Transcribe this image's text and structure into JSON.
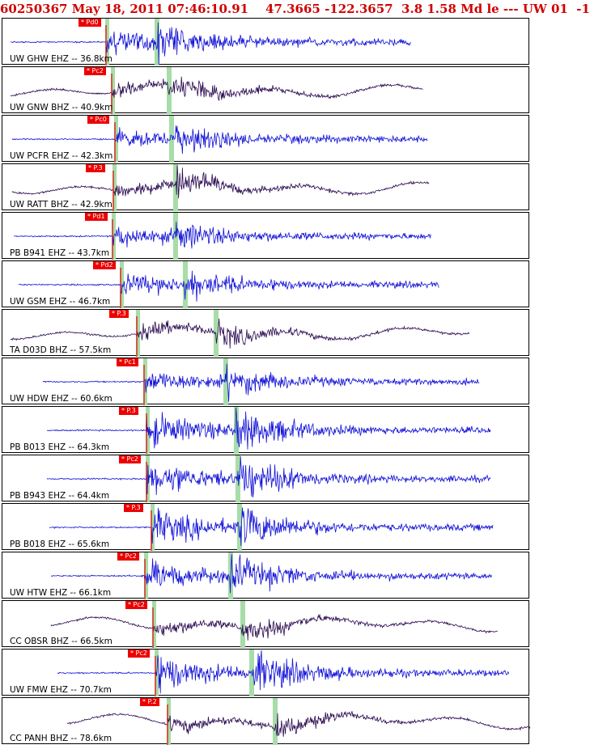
{
  "header": {
    "event_id": "60250367",
    "datetime": "May 18, 2011 07:46:10.91",
    "lat": "47.3665",
    "lon": "-122.3657",
    "depth": "3.8",
    "magnitude": "1.58 Md",
    "tail": "le --- UW 01  -1"
  },
  "colors": {
    "header": "#d00000",
    "pick": "#ee0000",
    "s_window": "#a8dca8",
    "ehz": "#1010d8",
    "bhz": "#2a0a50"
  },
  "traces": [
    {
      "label": "UW GHW EHZ -- 36.8km",
      "pick": "* Pd0",
      "kind": "EHZ"
    },
    {
      "label": "UW GNW BHZ -- 40.9km",
      "pick": "* Pc2",
      "kind": "BHZ"
    },
    {
      "label": "UW PCFR EHZ -- 42.3km",
      "pick": "* Pc0",
      "kind": "EHZ"
    },
    {
      "label": "UW RATT BHZ -- 42.9km",
      "pick": "* P.3",
      "kind": "BHZ"
    },
    {
      "label": "PB B941 EHZ -- 43.7km",
      "pick": "* Pd1",
      "kind": "EHZ"
    },
    {
      "label": "UW GSM EHZ -- 46.7km",
      "pick": "* Pd2",
      "kind": "EHZ"
    },
    {
      "label": "TA D03D BHZ -- 57.5km",
      "pick": "* P.3",
      "kind": "BHZ"
    },
    {
      "label": "UW HDW EHZ -- 60.6km",
      "pick": "* Pc1",
      "kind": "EHZ"
    },
    {
      "label": "PB B013 EHZ -- 64.3km",
      "pick": "* P.3",
      "kind": "EHZ"
    },
    {
      "label": "PB B943 EHZ -- 64.4km",
      "pick": "* Pc2",
      "kind": "EHZ"
    },
    {
      "label": "PB B018 EHZ -- 65.6km",
      "pick": "* P.3",
      "kind": "EHZ"
    },
    {
      "label": "UW HTW EHZ -- 66.1km",
      "pick": "* Pc2",
      "kind": "EHZ"
    },
    {
      "label": "CC OBSR BHZ -- 66.5km",
      "pick": "* Pc2",
      "kind": "BHZ"
    },
    {
      "label": "UW FMW EHZ -- 70.7km",
      "pick": "* Pc2",
      "kind": "EHZ"
    },
    {
      "label": "CC PANH BHZ -- 78.6km",
      "pick": "* P.2",
      "kind": "BHZ"
    }
  ]
}
